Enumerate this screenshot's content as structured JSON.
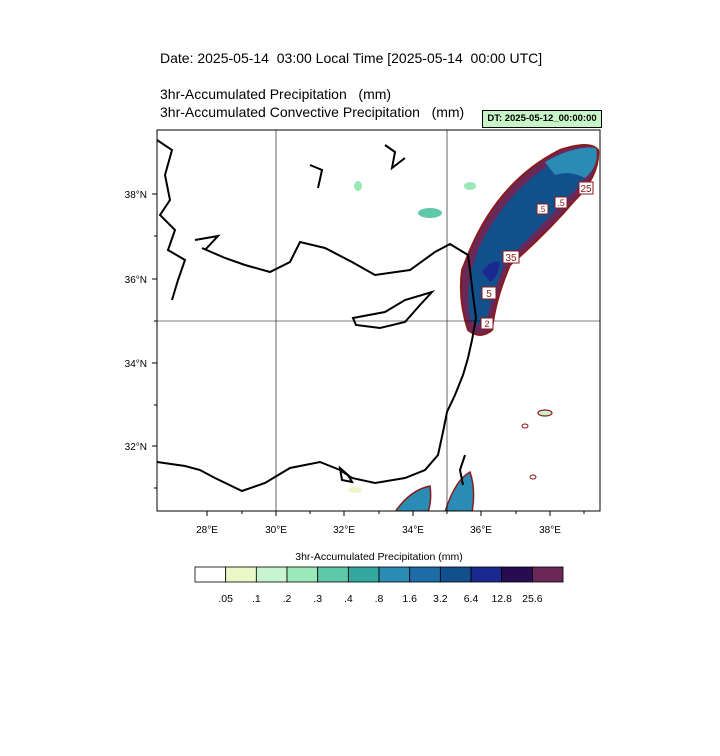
{
  "header": {
    "date_line": "Date: 2025-05-14  03:00 Local Time [2025-05-14  00:00 UTC]",
    "line1": "3hr-Accumulated Precipitation   (mm)",
    "line2": "3hr-Accumulated Convective Precipitation   (mm)",
    "dt_label": "DT: 2025-05-12_00:00:00"
  },
  "map": {
    "lon_range": [
      26.6,
      39.4
    ],
    "lat_range": [
      30.4,
      39.4
    ],
    "lon_ticks": [
      "28°E",
      "30°E",
      "32°E",
      "34°E",
      "36°E",
      "38°E"
    ],
    "lat_ticks": [
      "38°N",
      "36°N",
      "34°N",
      "32°N"
    ],
    "gridlines": [
      "30°E",
      "35°E",
      "35°N"
    ],
    "contour_labels": [
      "25",
      ".5",
      "35",
      "5",
      ".5",
      "2"
    ]
  },
  "colorbar": {
    "title": "3hr-Accumulated Precipitation  (mm)",
    "labels": [
      ".05",
      ".1",
      ".2",
      ".3",
      ".4",
      ".8",
      "1.6",
      "3.2",
      "6.4",
      "12.8",
      "25.6"
    ],
    "colors": [
      "#ffffff",
      "#eaf8c8",
      "#c8f5d0",
      "#9be8b8",
      "#5fc8a8",
      "#34a8a0",
      "#2a8cb4",
      "#1d6ca8",
      "#12508c",
      "#1a2890",
      "#280c50",
      "#6a2858"
    ]
  }
}
